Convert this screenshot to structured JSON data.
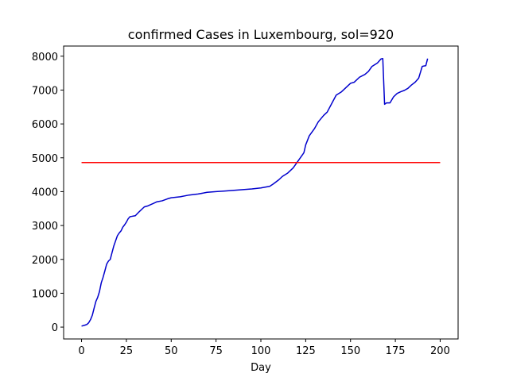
{
  "chart_data": {
    "type": "line",
    "title": "confirmed Cases in Luxembourg, sol=920",
    "xlabel": "Day",
    "ylabel": "",
    "xlim": [
      -10,
      210
    ],
    "ylim": [
      -350,
      8300
    ],
    "xticks": [
      0,
      25,
      50,
      75,
      100,
      125,
      150,
      175,
      200
    ],
    "yticks": [
      0,
      1000,
      2000,
      3000,
      4000,
      5000,
      6000,
      7000,
      8000
    ],
    "grid": false,
    "series": [
      {
        "color": "#0000cd",
        "style": "line",
        "x": [
          0,
          2,
          3,
          4,
          5,
          6,
          7,
          8,
          9,
          10,
          11,
          12,
          13,
          14,
          15,
          16,
          17,
          18,
          19,
          20,
          21,
          22,
          23,
          24,
          25,
          26,
          27,
          28,
          29,
          30,
          32,
          34,
          35,
          37,
          40,
          42,
          45,
          48,
          50,
          55,
          60,
          65,
          70,
          75,
          80,
          85,
          90,
          95,
          100,
          103,
          105,
          107,
          110,
          112,
          115,
          118,
          120,
          122,
          124,
          125,
          127,
          130,
          132,
          135,
          137,
          140,
          142,
          145,
          148,
          150,
          152,
          155,
          158,
          160,
          162,
          165,
          167,
          168,
          169,
          170,
          172,
          174,
          176,
          178,
          180,
          182,
          184,
          186,
          188,
          190,
          191,
          192,
          193
        ],
        "y": [
          30,
          60,
          80,
          130,
          220,
          350,
          560,
          760,
          880,
          1050,
          1310,
          1470,
          1660,
          1860,
          1950,
          2000,
          2200,
          2400,
          2550,
          2700,
          2780,
          2840,
          2950,
          3020,
          3100,
          3200,
          3260,
          3270,
          3280,
          3290,
          3400,
          3500,
          3550,
          3580,
          3650,
          3700,
          3730,
          3790,
          3820,
          3850,
          3900,
          3930,
          3980,
          4000,
          4020,
          4040,
          4060,
          4080,
          4110,
          4140,
          4160,
          4230,
          4350,
          4450,
          4550,
          4700,
          4850,
          5000,
          5150,
          5380,
          5650,
          5870,
          6060,
          6250,
          6350,
          6650,
          6850,
          6950,
          7100,
          7200,
          7230,
          7380,
          7460,
          7550,
          7700,
          7800,
          7920,
          7930,
          6580,
          6620,
          6620,
          6800,
          6900,
          6950,
          6990,
          7050,
          7150,
          7230,
          7350,
          7700,
          7710,
          7720,
          7930
        ]
      },
      {
        "color": "#ff0000",
        "style": "line",
        "x": [
          0,
          200
        ],
        "y": [
          4860,
          4860
        ]
      }
    ]
  }
}
